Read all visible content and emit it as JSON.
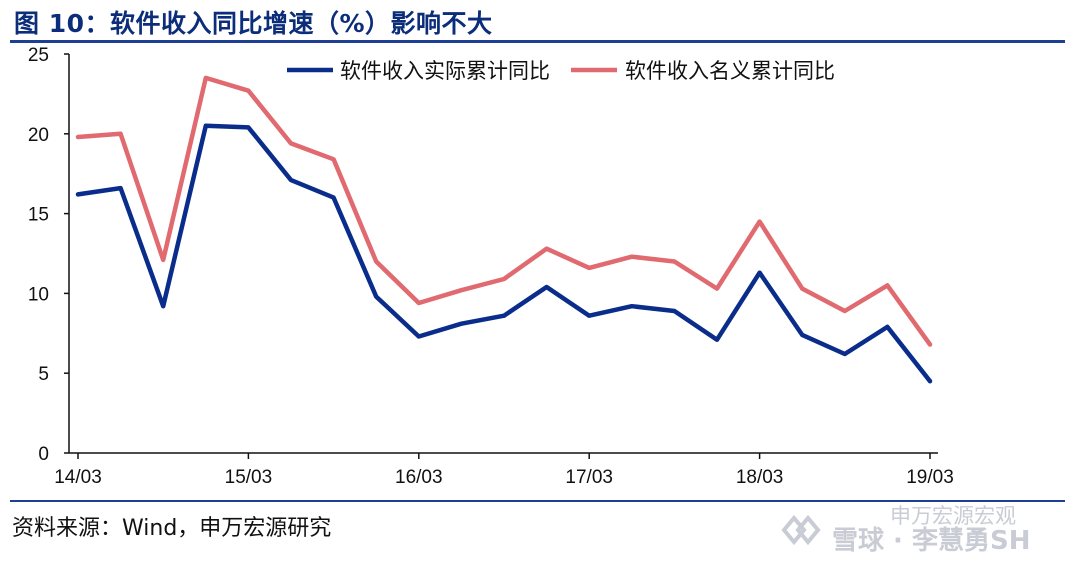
{
  "title": "图 10：软件收入同比增速（%）影响不大",
  "source": "资料来源：Wind，申万宏源研究",
  "watermark": {
    "line1": "申万宏源宏观",
    "line2": "雪球 · 李慧勇SH"
  },
  "colors": {
    "real": "#0a2d8c",
    "nominal": "#e06a6f",
    "axis": "#111111",
    "rule": "#1f3f94"
  },
  "chart_data": {
    "type": "line",
    "title": "",
    "xlabel": "",
    "ylabel": "",
    "ylim": [
      0,
      25
    ],
    "yticks": [
      0,
      5,
      10,
      15,
      20,
      25
    ],
    "x_tick_labels": [
      "14/03",
      "15/03",
      "16/03",
      "17/03",
      "18/03",
      "19/03"
    ],
    "x_tick_index": [
      0,
      4,
      8,
      12,
      16,
      20
    ],
    "grid": false,
    "legend_position": "top-right",
    "series": [
      {
        "name": "软件收入实际累计同比",
        "values": [
          16.2,
          16.6,
          9.2,
          20.5,
          20.4,
          17.1,
          16.0,
          9.8,
          7.3,
          8.1,
          8.6,
          10.4,
          8.6,
          9.2,
          8.9,
          7.1,
          11.3,
          7.4,
          6.2,
          7.9,
          4.5
        ]
      },
      {
        "name": "软件收入名义累计同比",
        "values": [
          19.8,
          20.0,
          12.1,
          23.5,
          22.7,
          19.4,
          18.4,
          12.0,
          9.4,
          10.2,
          10.9,
          12.8,
          11.6,
          12.3,
          12.0,
          10.3,
          14.5,
          10.3,
          8.9,
          10.5,
          6.8
        ]
      }
    ]
  }
}
